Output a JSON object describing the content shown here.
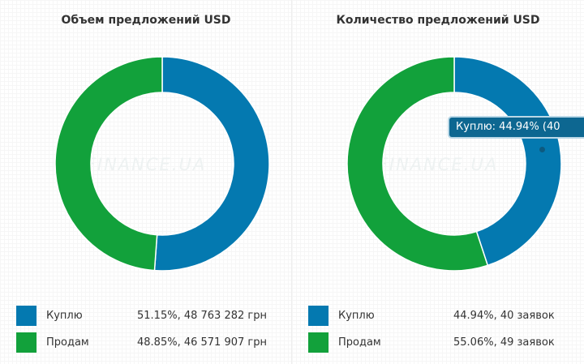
{
  "chart_data": [
    {
      "type": "pie",
      "variant": "donut",
      "title": "Объем предложений USD",
      "categories": [
        "Куплю",
        "Продам"
      ],
      "values": [
        51.15,
        48.85
      ],
      "value_labels": [
        "51.15%, 48 763 282 грн",
        "48.85%, 46 571 907 грн"
      ],
      "colors": [
        "#0479b0",
        "#12a13b"
      ],
      "legend_position": "bottom"
    },
    {
      "type": "pie",
      "variant": "donut",
      "title": "Количество предложений USD",
      "categories": [
        "Куплю",
        "Продам"
      ],
      "values": [
        44.94,
        55.06
      ],
      "value_labels": [
        "44.94%, 40 заявок",
        "55.06%, 49 заявок"
      ],
      "colors": [
        "#0479b0",
        "#12a13b"
      ],
      "legend_position": "bottom"
    }
  ],
  "watermark": "FINANCE.UA",
  "tooltip": {
    "text": "Куплю: 44.94% (40"
  }
}
